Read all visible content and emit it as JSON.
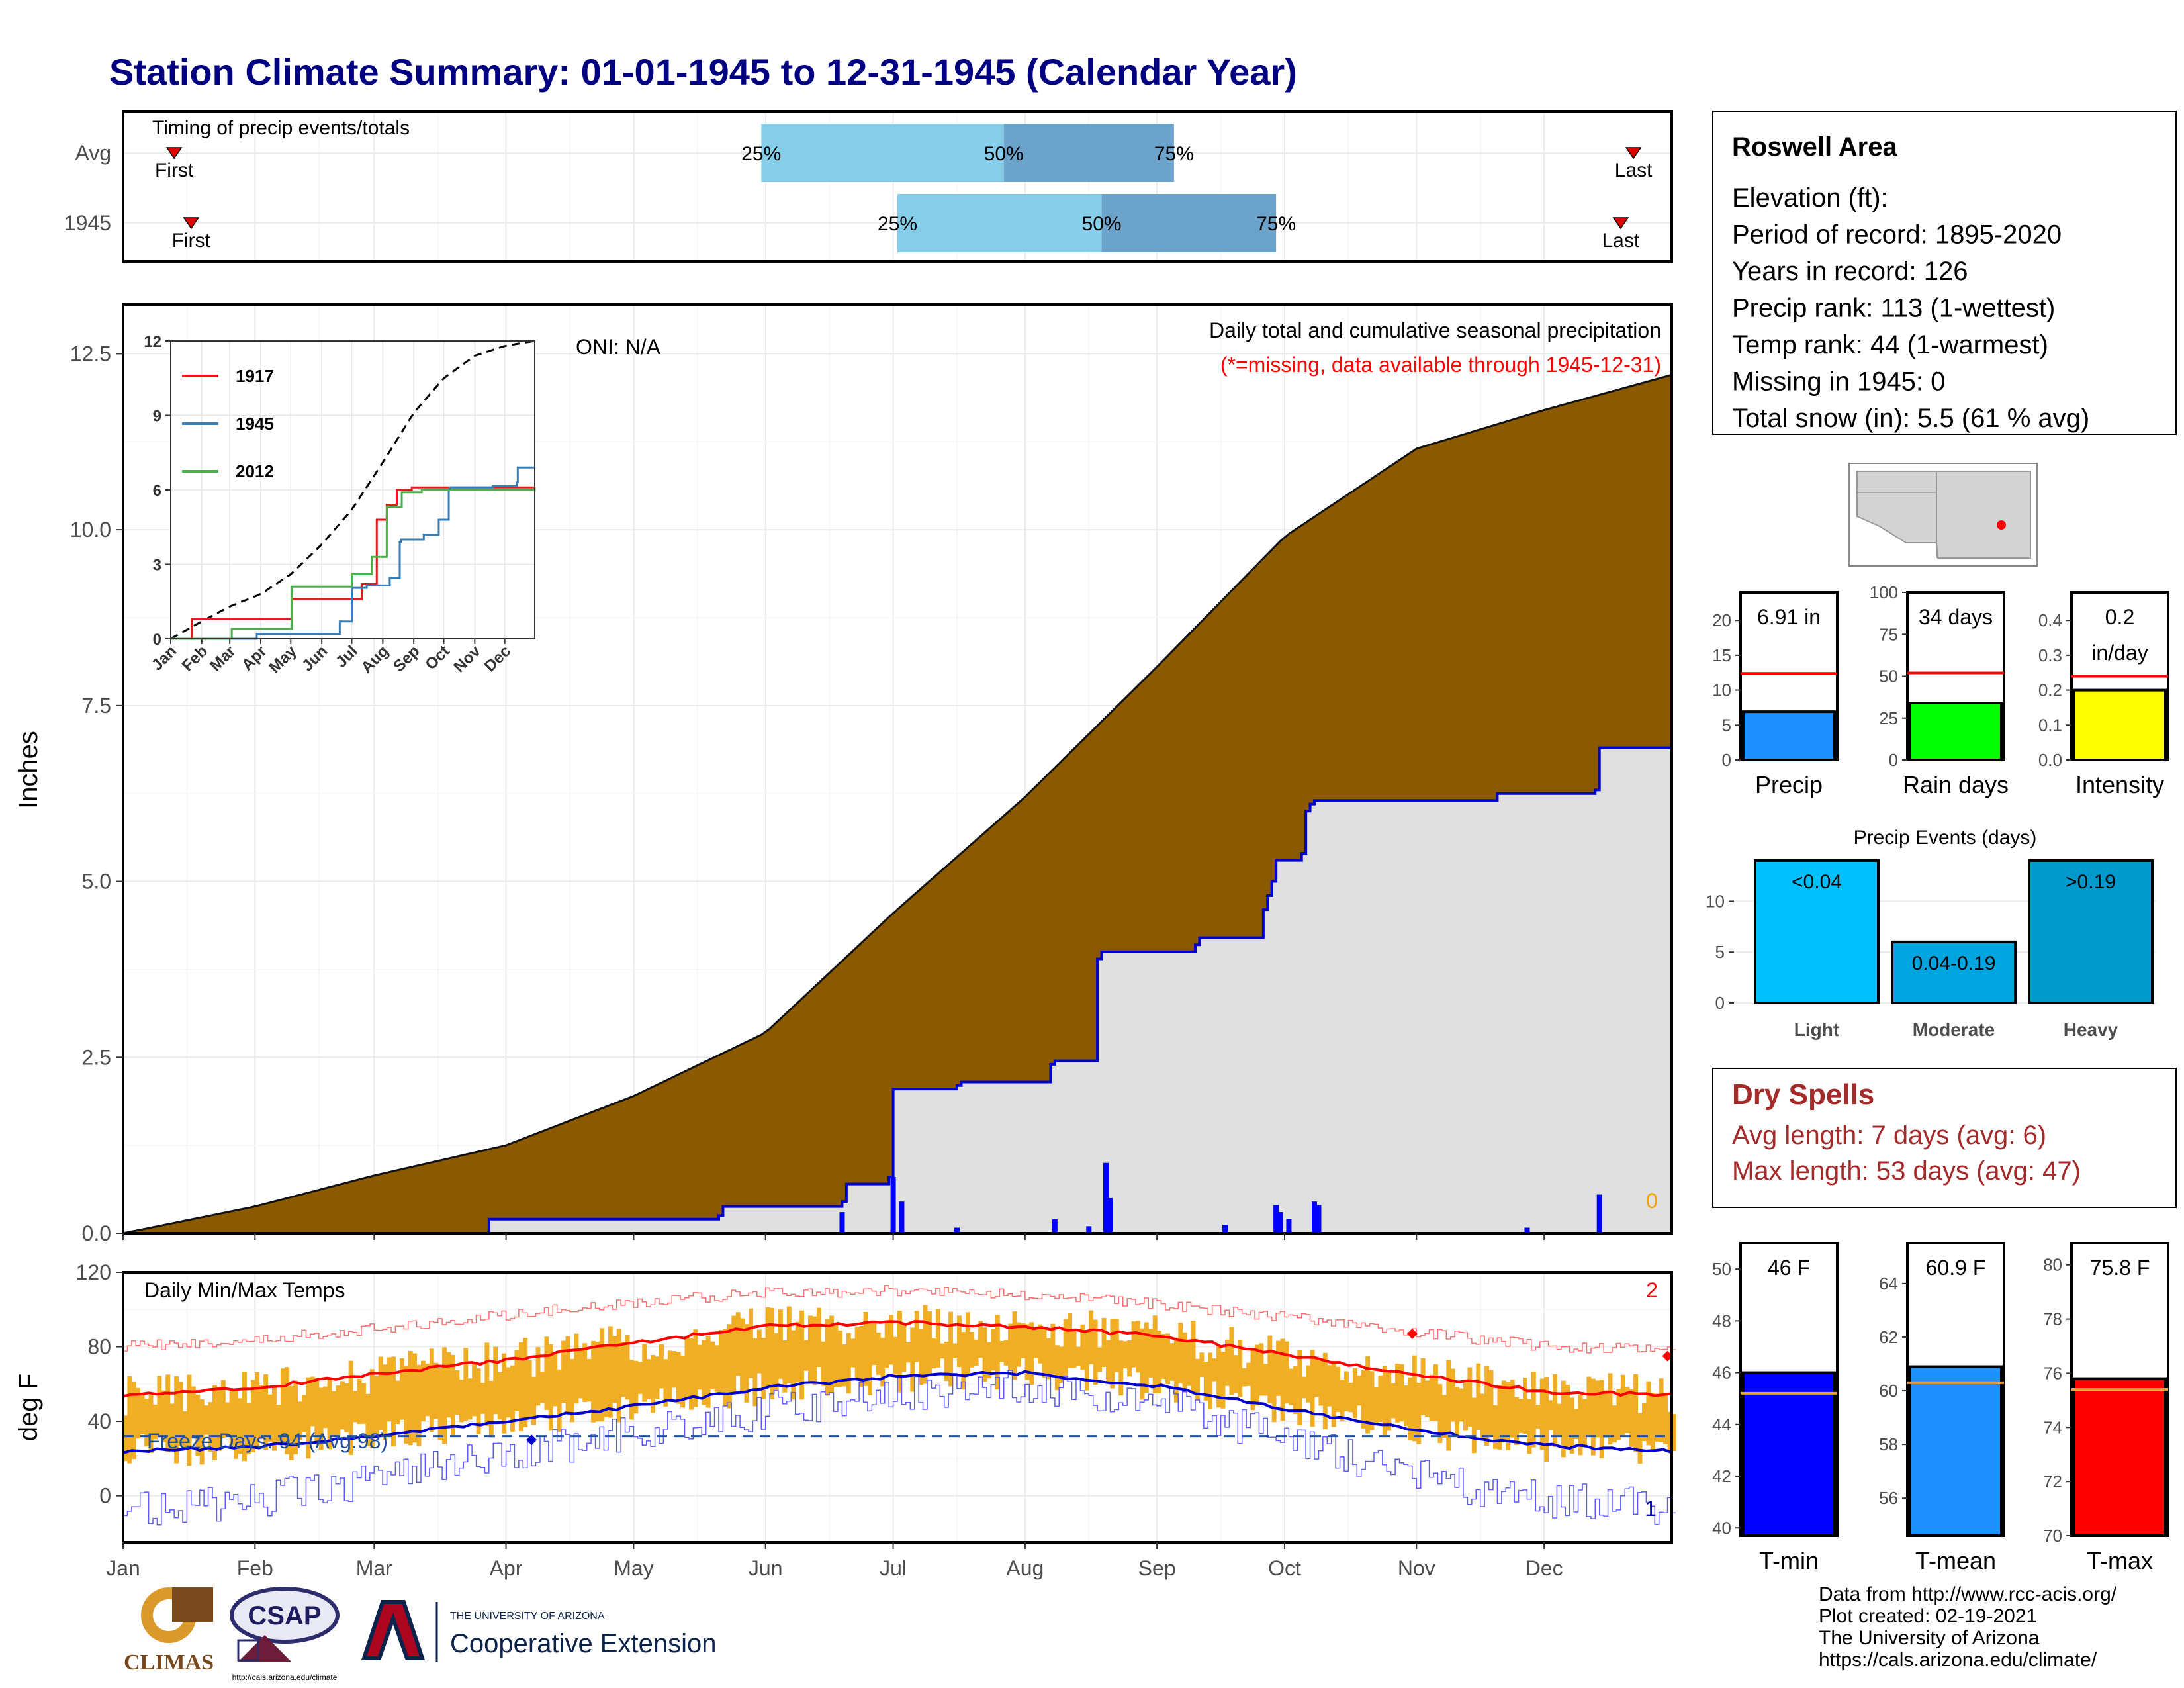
{
  "title": "Station Climate Summary: 01-01-1945 to 12-31-1945 (Calendar Year)",
  "timing_panel": {
    "label": "Timing of precip events/totals",
    "rows": [
      {
        "name": "Avg",
        "first_label": "First",
        "last_label": "Last",
        "p25": "25%",
        "p50": "50%",
        "p75": "75%",
        "first_day": 12,
        "last_day": 355,
        "q25_day": 150,
        "q50_day": 207,
        "q75_day": 247
      },
      {
        "name": "1945",
        "first_label": "First",
        "last_label": "Last",
        "p25": "25%",
        "p50": "50%",
        "p75": "75%",
        "first_day": 16,
        "last_day": 352,
        "q25_day": 182,
        "q50_day": 230,
        "q75_day": 271
      }
    ]
  },
  "precip_panel": {
    "ylabel": "Inches",
    "header": "Daily total and cumulative seasonal precipitation",
    "missing_note": "(*=missing, data available through 1945-12-31)",
    "oni": "ONI: N/A",
    "missing_count": "0",
    "month_labels": [
      "Jan",
      "Feb",
      "Mar",
      "Apr",
      "May",
      "Jun",
      "Jul",
      "Aug",
      "Sep",
      "Oct",
      "Nov",
      "Dec"
    ],
    "colors": {
      "avg_fill": "#8B5A00",
      "year_fill": "#E0E0E0",
      "year_line": "#0000CD",
      "bars": "#0000FF"
    }
  },
  "inset": {
    "legend": [
      {
        "name": "1917",
        "color": "#E41A1C"
      },
      {
        "name": "1945",
        "color": "#377EB8"
      },
      {
        "name": "2012",
        "color": "#4DAF4A"
      }
    ],
    "month_labels": [
      "Jan",
      "Feb",
      "Mar",
      "Apr",
      "May",
      "Jun",
      "Jul",
      "Aug",
      "Sep",
      "Oct",
      "Nov",
      "Dec"
    ]
  },
  "temp_panel": {
    "ylabel": "deg F",
    "label": "Daily Min/Max Temps",
    "freeze_label": "Freeze Days: 94 (Avg:98)",
    "count_high": "2",
    "count_low": "1",
    "month_labels": [
      "Jan",
      "Feb",
      "Mar",
      "Apr",
      "May",
      "Jun",
      "Jul",
      "Aug",
      "Sep",
      "Oct",
      "Nov",
      "Dec"
    ]
  },
  "info_box": {
    "station": "Roswell Area",
    "lines": [
      "Elevation (ft):",
      "Period of record: 1895-2020",
      "Years in record: 126",
      "Precip rank: 113 (1-wettest)",
      "Temp rank: 44 (1-warmest)",
      "Missing in 1945: 0",
      "Total snow (in): 5.5 (61 % avg)"
    ]
  },
  "precip_stats": [
    {
      "label": "Precip",
      "value_text": "6.91 in",
      "value": 6.91,
      "avg": 12.4,
      "ymax": 24,
      "ticks": [
        0,
        5,
        10,
        15,
        20
      ],
      "color": "#1E90FF"
    },
    {
      "label": "Rain days",
      "value_text": "34 days",
      "value": 34,
      "avg": 52,
      "ymax": 100,
      "ticks": [
        0,
        25,
        50,
        75,
        100
      ],
      "color": "#00FF00"
    },
    {
      "label": "Intensity",
      "value_text": "0.2",
      "value_text2": "in/day",
      "value": 0.2,
      "avg": 0.24,
      "ymax": 0.48,
      "ticks": [
        0.0,
        0.1,
        0.2,
        0.3,
        0.4
      ],
      "tick_labels": [
        "0.0",
        "0.1",
        "0.2",
        "0.3",
        "0.4"
      ],
      "color": "#FFFF00"
    }
  ],
  "precip_events": {
    "title": "Precip Events (days)",
    "categories": [
      "Light",
      "Moderate",
      "Heavy"
    ],
    "bar_labels": [
      "<0.04",
      "0.04-0.19",
      ">0.19"
    ],
    "values": [
      14,
      6,
      14
    ],
    "colors": [
      "#00BFFF",
      "#00A5E0",
      "#0099CC"
    ],
    "ymax": 14,
    "ticks": [
      0,
      5,
      10
    ]
  },
  "dry_spells": {
    "title": "Dry Spells",
    "avg_line": "Avg length: 7 days (avg: 6)",
    "max_line": "Max length: 53 days (avg: 47)"
  },
  "temp_stats": [
    {
      "label": "T-min",
      "value_text": "46 F",
      "value": 46.0,
      "avg": 45.2,
      "ymin": 39.7,
      "ymax": 51,
      "ticks": [
        40,
        42,
        44,
        46,
        48,
        50
      ],
      "color": "#0000FF"
    },
    {
      "label": "T-mean",
      "value_text": "60.9 F",
      "value": 60.9,
      "avg": 60.3,
      "ymin": 54.6,
      "ymax": 65.5,
      "ticks": [
        56,
        58,
        60,
        62,
        64
      ],
      "color": "#1E90FF"
    },
    {
      "label": "T-max",
      "value_text": "75.8 F",
      "value": 75.8,
      "avg": 75.4,
      "ymin": 70,
      "ymax": 80.8,
      "ticks": [
        70,
        72,
        74,
        76,
        78,
        80
      ],
      "color": "#FF0000"
    }
  ],
  "credits": [
    "Data from http://www.rcc-acis.org/",
    "Plot created: 02-19-2021",
    "The University of Arizona",
    "https://cals.arizona.edu/climate/"
  ],
  "logos": {
    "climas": "CLIMAS",
    "csap": "CSAP",
    "csap_url": "http://cals.arizona.edu/climate",
    "ua_top": "THE UNIVERSITY OF ARIZONA",
    "ua_bottom": "Cooperative Extension"
  },
  "chart_data": [
    {
      "type": "area",
      "title": "Daily total and cumulative seasonal precipitation",
      "ylabel": "Inches",
      "ylim": [
        0,
        13.2
      ],
      "yticks": [
        0.0,
        2.5,
        5.0,
        7.5,
        10.0,
        12.5
      ],
      "x_units": "day of year",
      "series": [
        {
          "name": "",
          "x": [
            0,
            31,
            59,
            90,
            120,
            151,
            181,
            212,
            243,
            273,
            304,
            334,
            364
          ],
          "values": [
            0,
            0.38,
            0.82,
            1.25,
            1.95,
            2.85,
            4.55,
            6.2,
            8.05,
            9.9,
            11.15,
            11.7,
            12.2
          ]
        },
        {
          "name": "",
          "x": [
            0,
            85,
            86,
            140,
            141,
            169,
            170,
            180,
            181,
            196,
            197,
            218,
            219,
            229,
            230,
            252,
            253,
            268,
            269,
            270,
            271,
            277,
            278,
            279,
            280,
            322,
            323,
            346,
            347,
            364
          ],
          "values": [
            0,
            0,
            0.2,
            0.25,
            0.38,
            0.45,
            0.7,
            0.8,
            2.05,
            2.1,
            2.15,
            2.4,
            2.45,
            3.9,
            4.0,
            4.1,
            4.2,
            4.6,
            4.8,
            5.0,
            5.3,
            5.4,
            6.0,
            6.1,
            6.15,
            6.15,
            6.25,
            6.3,
            6.9,
            6.91
          ]
        },
        {
          "name": "",
          "type": "bar",
          "x": [
            169,
            181,
            183,
            196,
            219,
            227,
            231,
            232,
            259,
            271,
            272,
            274,
            280,
            281,
            330,
            347
          ],
          "values": [
            0.3,
            0.8,
            0.45,
            0.08,
            0.2,
            0.1,
            1.0,
            0.5,
            0.12,
            0.4,
            0.3,
            0.2,
            0.45,
            0.4,
            0.08,
            0.55
          ]
        }
      ]
    },
    {
      "type": "line",
      "title": "",
      "ylim": [
        0,
        12
      ],
      "yticks": [
        0,
        3,
        6,
        9,
        12
      ],
      "x_units": "day of year",
      "series": [
        {
          "name": "",
          "x": [
            0,
            31,
            59,
            90,
            120,
            151,
            181,
            212,
            243,
            273,
            304,
            334,
            364
          ],
          "values": [
            0,
            0.7,
            1.3,
            1.8,
            2.6,
            3.8,
            5.2,
            7.1,
            9.1,
            10.5,
            11.4,
            11.8,
            12.0
          ]
        },
        {
          "name": "1917",
          "x": [
            0,
            20,
            21,
            120,
            121,
            190,
            191,
            205,
            206,
            215,
            216,
            225,
            226,
            240,
            241,
            300,
            364
          ],
          "values": [
            0,
            0,
            0.8,
            0.8,
            1.6,
            1.6,
            2.2,
            2.2,
            4.8,
            4.8,
            5.4,
            5.4,
            6.0,
            6.0,
            6.1,
            6.1,
            6.1
          ]
        },
        {
          "name": "1945",
          "x": [
            0,
            85,
            86,
            169,
            181,
            196,
            219,
            229,
            230,
            253,
            268,
            278,
            279,
            322,
            346,
            347,
            364
          ],
          "values": [
            0,
            0,
            0.2,
            0.7,
            2.05,
            2.15,
            2.45,
            3.9,
            4.0,
            4.2,
            4.8,
            6.0,
            6.1,
            6.15,
            6.3,
            6.9,
            6.91
          ]
        },
        {
          "name": "2012",
          "x": [
            0,
            60,
            61,
            120,
            121,
            180,
            181,
            200,
            201,
            215,
            216,
            230,
            231,
            250,
            251,
            364
          ],
          "values": [
            0,
            0,
            0.4,
            0.4,
            2.1,
            2.1,
            2.6,
            2.6,
            3.3,
            3.3,
            5.3,
            5.3,
            5.9,
            5.9,
            6.0,
            6.1
          ]
        }
      ]
    },
    {
      "type": "line",
      "title": "Daily Min/Max Temps",
      "ylabel": "deg F",
      "ylim": [
        -25,
        120
      ],
      "yticks": [
        0,
        40,
        80,
        120
      ],
      "x_units": "day of year",
      "freeze_line": 32,
      "series": [
        {
          "name": "",
          "x": [
            0,
            31,
            59,
            90,
            120,
            151,
            181,
            212,
            243,
            273,
            304,
            334,
            364
          ],
          "values": [
            54,
            58,
            65,
            73,
            82,
            91,
            93,
            91,
            86,
            76,
            65,
            56,
            54
          ]
        },
        {
          "name": "",
          "x": [
            0,
            31,
            59,
            90,
            120,
            151,
            181,
            212,
            243,
            273,
            304,
            334,
            364
          ],
          "values": [
            24,
            26,
            32,
            40,
            48,
            58,
            64,
            66,
            59,
            47,
            35,
            27,
            24
          ]
        },
        {
          "name": "",
          "x": [
            0,
            31,
            59,
            90,
            120,
            151,
            181,
            212,
            243,
            273,
            304,
            334,
            364
          ],
          "values": [
            80,
            84,
            90,
            97,
            104,
            109,
            110,
            108,
            103,
            96,
            88,
            80,
            78
          ]
        },
        {
          "name": "",
          "x": [
            0,
            31,
            59,
            90,
            120,
            151,
            181,
            212,
            243,
            273,
            304,
            334,
            364
          ],
          "values": [
            -8,
            -2,
            8,
            22,
            33,
            46,
            55,
            58,
            50,
            30,
            10,
            -2,
            -6
          ]
        }
      ]
    },
    {
      "type": "bar",
      "title": "Precip Events (days)",
      "categories": [
        "Light",
        "Moderate",
        "Heavy"
      ],
      "values": [
        14,
        6,
        14
      ]
    }
  ]
}
